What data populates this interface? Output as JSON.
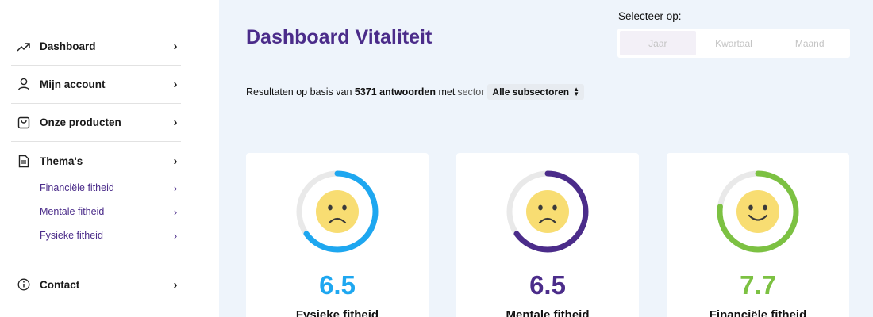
{
  "sidebar": {
    "items": [
      {
        "label": "Dashboard",
        "icon": "trending-up-icon"
      },
      {
        "label": "Mijn account",
        "icon": "user-icon"
      },
      {
        "label": "Onze producten",
        "icon": "shopping-bag-icon"
      },
      {
        "label": "Thema's",
        "icon": "document-icon"
      }
    ],
    "sub_items": [
      {
        "label": "Financiële fitheid"
      },
      {
        "label": "Mentale fitheid"
      },
      {
        "label": "Fysieke fitheid"
      }
    ],
    "contact": {
      "label": "Contact",
      "icon": "info-icon"
    }
  },
  "header": {
    "title": "Dashboard Vitaliteit",
    "select_label": "Selecteer op:",
    "periods": [
      "Jaar",
      "Kwartaal",
      "Maand"
    ],
    "active_period": "Jaar"
  },
  "results": {
    "prefix": "Resultaten op basis van",
    "count": "5371 antwoorden",
    "middle": "met",
    "sector_label": "sector",
    "subsector_value": "Alle subsectoren"
  },
  "cards": [
    {
      "score": "6.5",
      "label": "Fysieke fitheid",
      "color": "#1ea7f0",
      "fill_fraction": 0.65,
      "face": "sad"
    },
    {
      "score": "6.5",
      "label": "Mentale fitheid",
      "color": "#4b2c8a",
      "fill_fraction": 0.65,
      "face": "sad"
    },
    {
      "score": "7.7",
      "label": "Financiële fitheid",
      "color": "#7cc142",
      "fill_fraction": 0.77,
      "face": "happy"
    }
  ],
  "colors": {
    "brand_purple": "#4b2c8a",
    "background": "#eef4fb",
    "face_yellow": "#f8dd72"
  }
}
